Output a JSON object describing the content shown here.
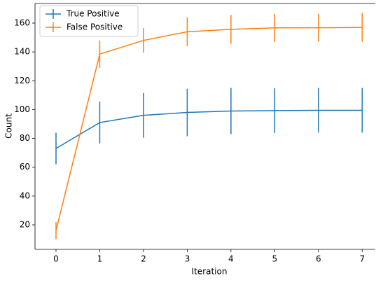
{
  "chart_data": {
    "type": "line",
    "x": [
      0,
      1,
      2,
      3,
      4,
      5,
      6,
      7
    ],
    "xlabel": "Iteration",
    "ylabel": "Count",
    "series": [
      {
        "name": "True Positive",
        "color": "#1f77b4",
        "values": [
          73,
          91,
          96,
          98,
          99,
          99.3,
          99.5,
          99.5
        ],
        "errors": [
          11,
          14.5,
          15.5,
          16.5,
          16,
          15.5,
          15.5,
          15.5
        ]
      },
      {
        "name": "False Positive",
        "color": "#ff7f0e",
        "values": [
          16,
          138.5,
          148,
          154,
          155.7,
          156.7,
          156.8,
          157
        ],
        "errors": [
          6,
          9.5,
          8.5,
          10,
          10,
          9.7,
          9.7,
          10
        ]
      }
    ],
    "xlim": [
      -0.48,
      7.3
    ],
    "ylim": [
      3,
      173.6
    ],
    "xticks": [
      0,
      1,
      2,
      3,
      4,
      5,
      6,
      7
    ],
    "yticks": [
      20,
      40,
      60,
      80,
      100,
      120,
      140,
      160
    ],
    "legend": "upper left",
    "grid": false
  }
}
